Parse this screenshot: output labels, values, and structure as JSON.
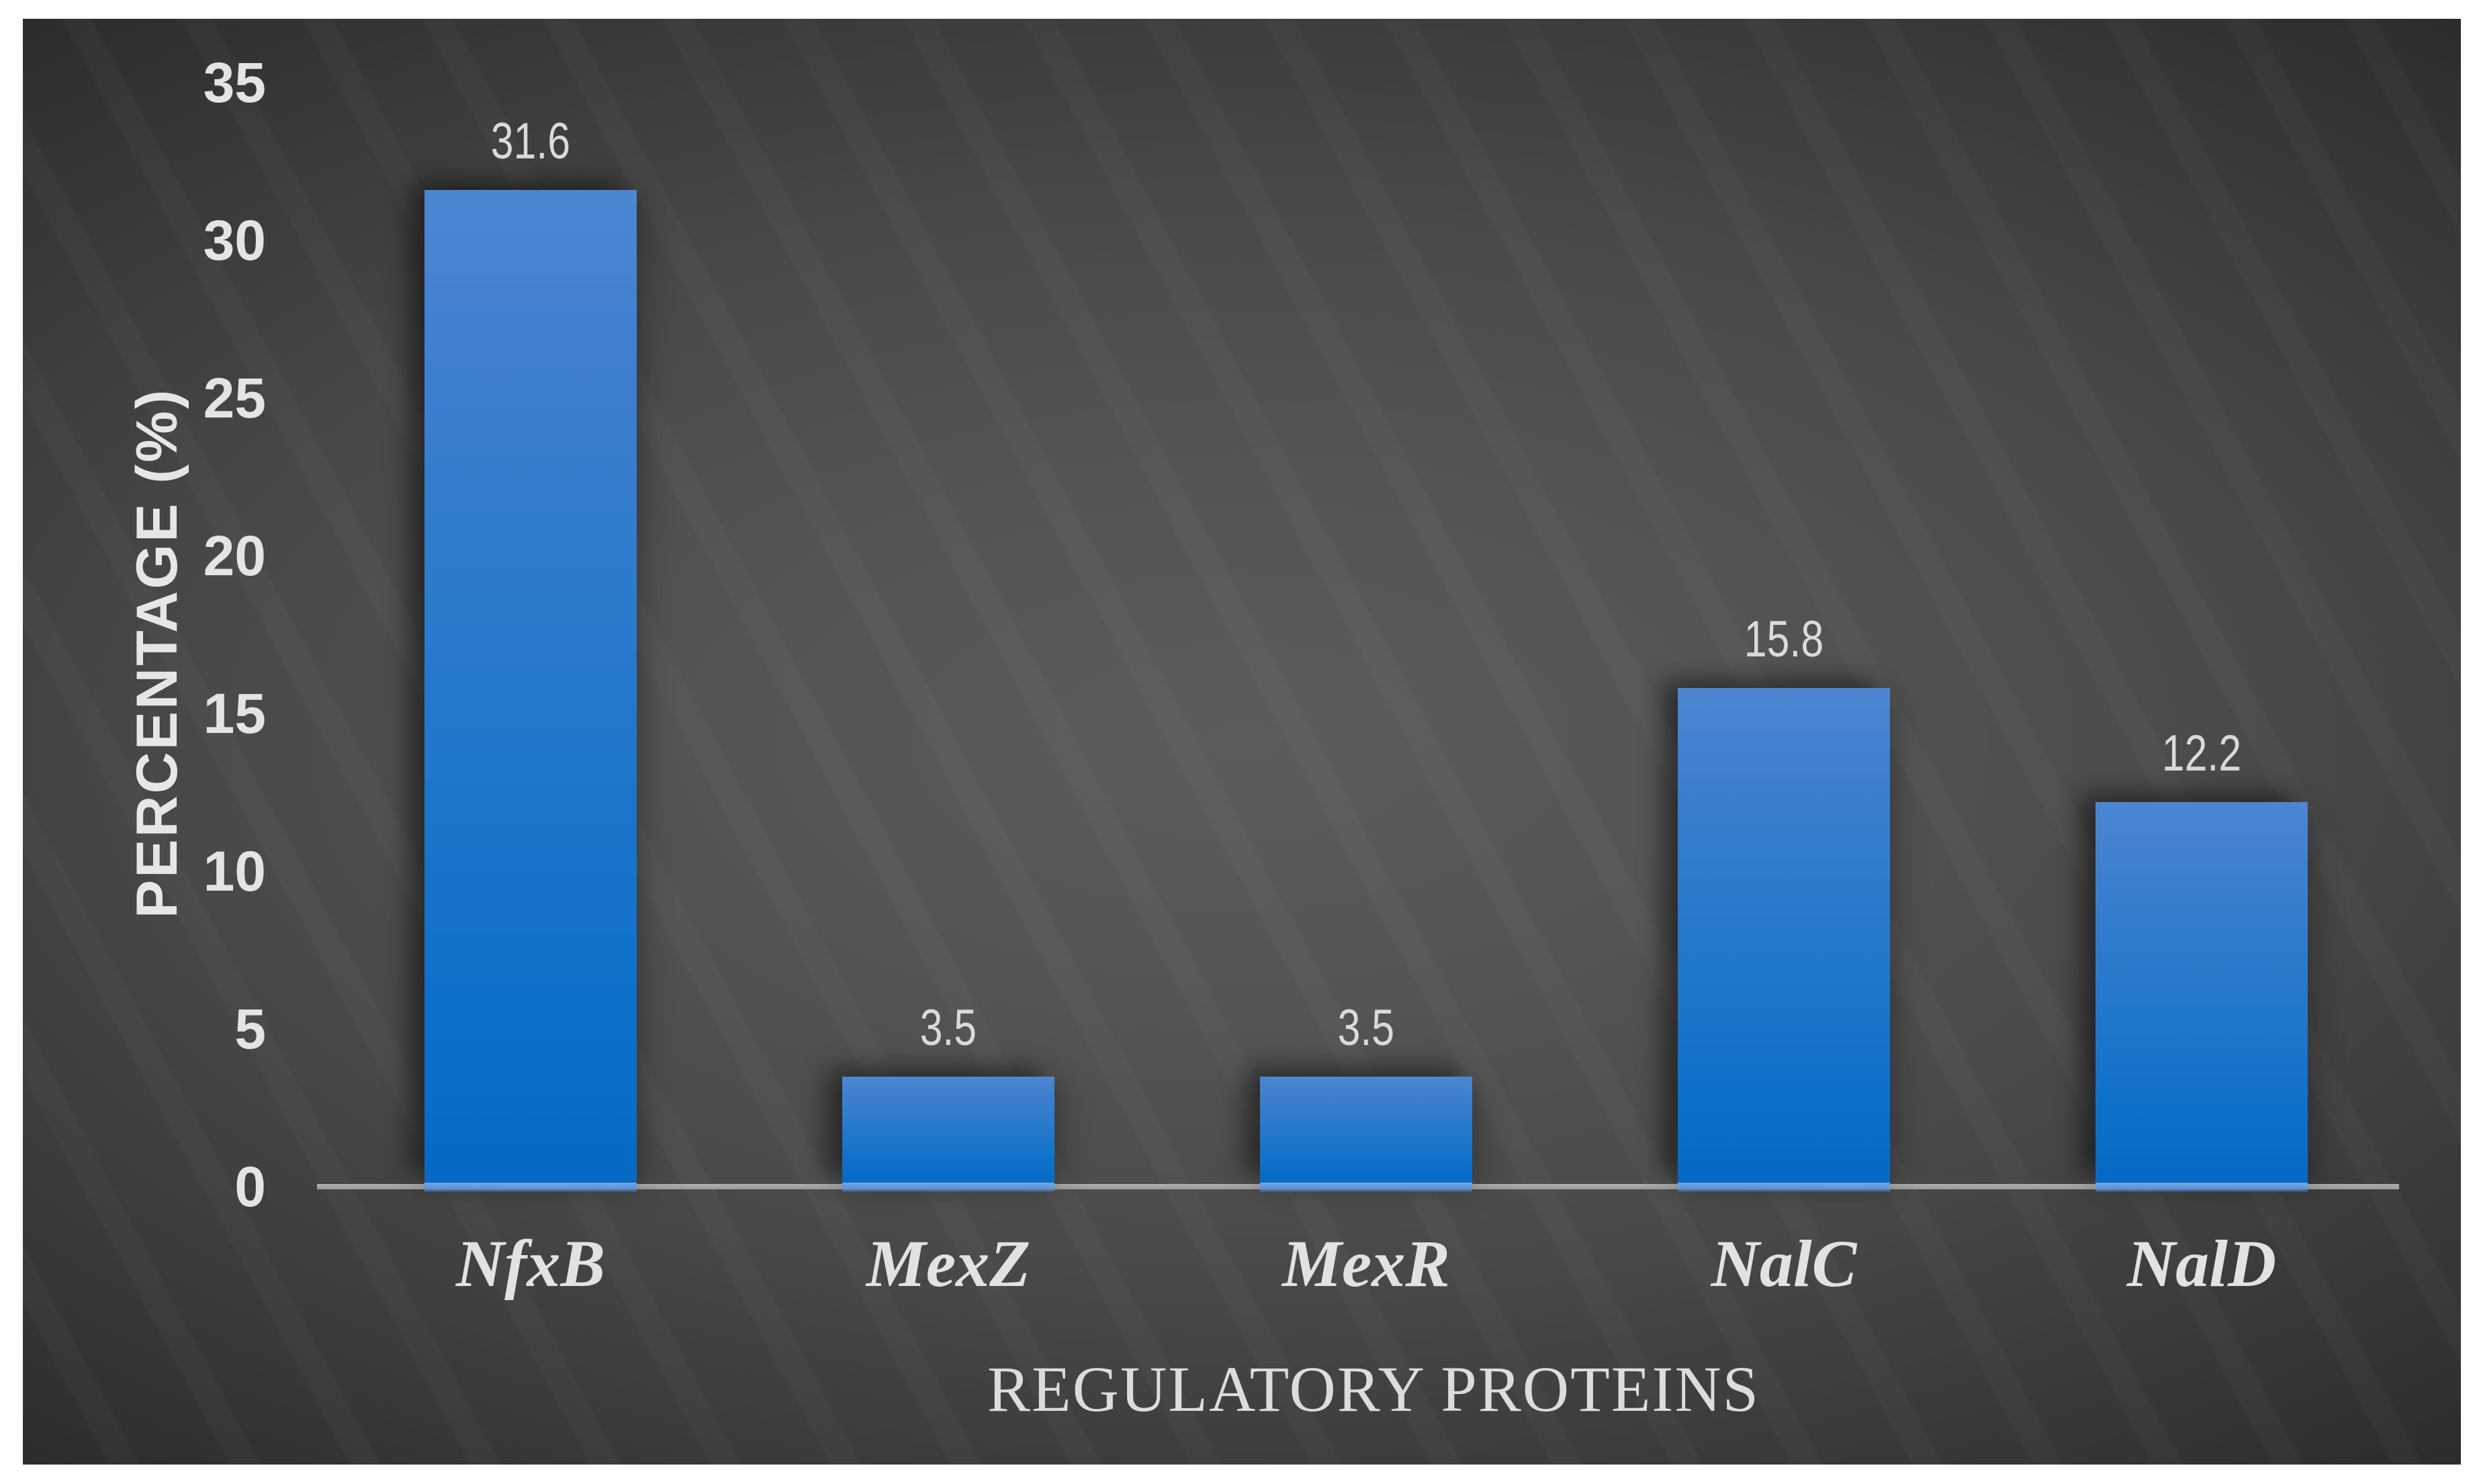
{
  "chart_data": {
    "type": "bar",
    "title": "",
    "categories": [
      "NfxB",
      "MexZ",
      "MexR",
      "NalC",
      "NalD"
    ],
    "values": [
      31.6,
      3.5,
      3.5,
      15.8,
      12.2
    ],
    "value_labels": [
      "31.6",
      "3.5",
      "3.5",
      "15.8",
      "12.2"
    ],
    "xlabel": "REGULATORY PROTEINS",
    "ylabel": "PERCENTAGE (%)",
    "ylim": [
      0,
      35
    ],
    "yticks": [
      "0",
      "5",
      "10",
      "15",
      "20",
      "25",
      "30",
      "35"
    ],
    "ytick_values": [
      0,
      5,
      10,
      15,
      20,
      25,
      30,
      35
    ],
    "grid": false,
    "legend": null,
    "bar_color_top": "#4c86d1",
    "bar_color_bottom": "#0669c4",
    "bar_reflection_color": "#78a6df",
    "axis_line_color": "#a5a5a5",
    "text_color": "#e4e4e4",
    "panel_center_color": "#5c5c5c",
    "panel_edge_color": "#202020",
    "frame_color": "#ffffff"
  }
}
